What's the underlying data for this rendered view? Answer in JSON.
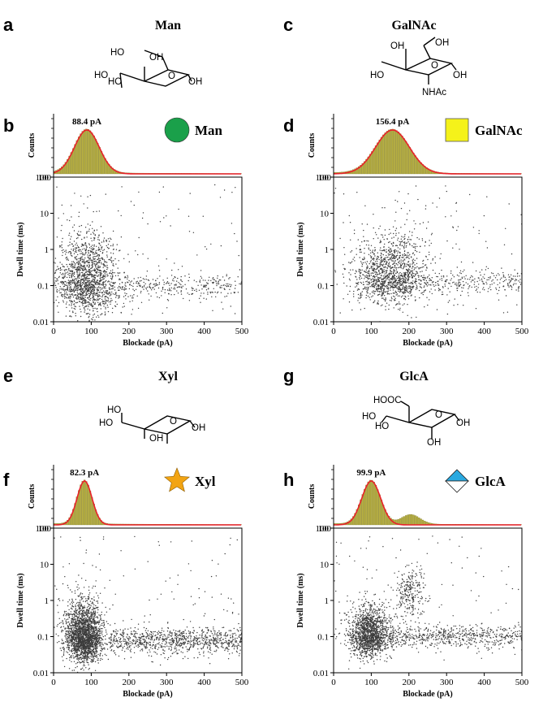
{
  "chart_data": [
    {
      "panel_structure": "a",
      "panel_hist": "b",
      "sugar": "Man",
      "type": "histogram+scatter",
      "peak_label": "88.4 pA",
      "peak_center": 88.4,
      "peak_sigma": 33,
      "legend": "Man",
      "legend_symbol": "circle",
      "legend_color": "#1aa04a",
      "hist_ylabel": "Counts",
      "hist_ytick": "100",
      "xlabel": "Blockade (pA)",
      "ylabel": "Dwell time (ms)",
      "xlim": [
        0,
        500
      ],
      "ylim": [
        0.01,
        100
      ],
      "xticks": [
        "0",
        "100",
        "200",
        "300",
        "400",
        "500"
      ],
      "yticks": [
        "0.01",
        "0.1",
        "1",
        "10",
        "100"
      ],
      "scatter": {
        "cluster_center": 90,
        "cluster_spread_x": 40,
        "cluster_logy": -0.85,
        "cluster_spread_logy": 0.45,
        "n_cluster": 1500,
        "n_tail": 320,
        "tail_logy": -1.0,
        "n_sparse": 120
      },
      "chem_labels": [
        "HO",
        "OH",
        "HO",
        "HO",
        "O",
        "OH"
      ]
    },
    {
      "panel_structure": "c",
      "panel_hist": "d",
      "sugar": "GalNAc",
      "type": "histogram+scatter",
      "peak_label": "156.4 pA",
      "peak_center": 156.4,
      "peak_sigma": 45,
      "legend": "GalNAc",
      "legend_symbol": "square",
      "legend_color": "#f5f21a",
      "hist_ylabel": "Counts",
      "hist_ytick": "100",
      "xlabel": "Blockade (pA)",
      "ylabel": "Dwell time (ms)",
      "xlim": [
        0,
        500
      ],
      "ylim": [
        0.01,
        100
      ],
      "xticks": [
        "0",
        "100",
        "200",
        "300",
        "400",
        "500"
      ],
      "yticks": [
        "0.01",
        "0.1",
        "1",
        "10",
        "100"
      ],
      "scatter": {
        "cluster_center": 150,
        "cluster_spread_x": 50,
        "cluster_logy": -0.7,
        "cluster_spread_logy": 0.4,
        "n_cluster": 1300,
        "n_tail": 320,
        "tail_logy": -0.9,
        "n_sparse": 120
      },
      "chem_labels": [
        "OH",
        "OH",
        "HO",
        "O",
        "OH",
        "NHAc"
      ]
    },
    {
      "panel_structure": "e",
      "panel_hist": "f",
      "sugar": "Xyl",
      "type": "histogram+scatter",
      "peak_label": "82.3 pA",
      "peak_center": 82.3,
      "peak_sigma": 20,
      "legend": "Xyl",
      "legend_symbol": "star",
      "legend_color": "#f2a413",
      "hist_ylabel": "Counts",
      "hist_ytick": "100",
      "xlabel": "Blockade (pA)",
      "ylabel": "Dwell time (ms)",
      "xlim": [
        0,
        500
      ],
      "ylim": [
        0.01,
        100
      ],
      "xticks": [
        "0",
        "100",
        "200",
        "300",
        "400",
        "500"
      ],
      "yticks": [
        "0.01",
        "0.1",
        "1",
        "10",
        "100"
      ],
      "scatter": {
        "cluster_center": 80,
        "cluster_spread_x": 25,
        "cluster_logy": -1.0,
        "cluster_spread_logy": 0.35,
        "n_cluster": 2200,
        "n_tail": 900,
        "tail_logy": -1.1,
        "n_sparse": 120
      },
      "chem_labels": [
        "HO",
        "HO",
        "O",
        "OH",
        "OH"
      ]
    },
    {
      "panel_structure": "g",
      "panel_hist": "h",
      "sugar": "GlcA",
      "type": "histogram+scatter",
      "peak_label": "99.9 pA",
      "peak_center": 99.9,
      "peak_sigma": 25,
      "legend": "GlcA",
      "legend_symbol": "diamond",
      "legend_color": "#29a9e0",
      "hist_ylabel": "Counts",
      "hist_ytick": "100",
      "xlabel": "Blockade (pA)",
      "ylabel": "Dwell time (ms)",
      "xlim": [
        0,
        500
      ],
      "ylim": [
        0.01,
        100
      ],
      "xticks": [
        "0",
        "100",
        "200",
        "300",
        "400",
        "500"
      ],
      "yticks": [
        "0.01",
        "0.1",
        "1",
        "10",
        "100"
      ],
      "scatter": {
        "cluster_center": 95,
        "cluster_spread_x": 28,
        "cluster_logy": -0.95,
        "cluster_spread_logy": 0.3,
        "n_cluster": 1500,
        "n_tail": 600,
        "tail_logy": -1.0,
        "n_sparse": 100,
        "second_cluster_center": 205,
        "second_cluster_logy": 0.2
      },
      "chem_labels": [
        "HOOC",
        "HO",
        "HO",
        "O",
        "OH",
        "OH"
      ]
    }
  ]
}
